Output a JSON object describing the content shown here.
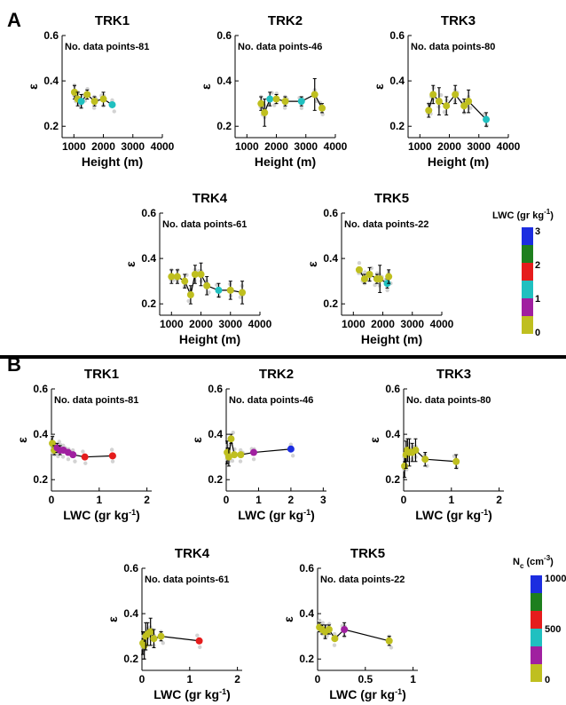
{
  "panel_labels": {
    "a": "A",
    "b": "B"
  },
  "colorbars": {
    "a": {
      "title": "LWC (gr kg",
      "title_sup": "-1",
      "title_close": ")",
      "ticks": [
        "3",
        "2",
        "1",
        "0"
      ]
    },
    "b": {
      "title": "N",
      "title_sub": "c",
      "title_mid": " (cm",
      "title_sup": "-3",
      "title_close": ")",
      "ticks": [
        "1000",
        "500",
        "0"
      ]
    },
    "colors": [
      "#bfbf1f",
      "#a020a0",
      "#20c0c0",
      "#e51c1c",
      "#1e7f1e",
      "#1c2de0"
    ]
  },
  "chart_data": [
    {
      "type": "line",
      "title": "TRK1",
      "annotation": "No. data points-81",
      "xlabel": "Height (m)",
      "ylabel": "ε",
      "xticks": [
        "1000",
        "2000",
        "3000",
        "4000"
      ],
      "yticks": [
        "0.6",
        "0.4",
        "0.2"
      ],
      "xlim": [
        600,
        4000
      ],
      "ylim": [
        0.15,
        0.6
      ],
      "x": [
        1020,
        1130,
        1250,
        1450,
        1700,
        2000,
        2300
      ],
      "y": [
        0.35,
        0.32,
        0.31,
        0.34,
        0.31,
        0.32,
        0.295
      ],
      "err": [
        0.03,
        0.03,
        0.03,
        0.02,
        0.02,
        0.03,
        0.0
      ],
      "color_level": [
        0.3,
        0.3,
        1.0,
        0.3,
        0.3,
        0.3,
        1.0
      ]
    },
    {
      "type": "line",
      "title": "TRK2",
      "annotation": "No. data points-46",
      "xlabel": "Height (m)",
      "ylabel": "ε",
      "xticks": [
        "1000",
        "2000",
        "3000",
        "4000"
      ],
      "yticks": [
        "0.6",
        "0.4",
        "0.2"
      ],
      "xlim": [
        600,
        4000
      ],
      "ylim": [
        0.15,
        0.6
      ],
      "x": [
        1480,
        1600,
        1780,
        2000,
        2300,
        2850,
        3300,
        3550
      ],
      "y": [
        0.3,
        0.26,
        0.32,
        0.32,
        0.31,
        0.31,
        0.34,
        0.28
      ],
      "err": [
        0.03,
        0.06,
        0.03,
        0.02,
        0.02,
        0.02,
        0.07,
        0.02
      ],
      "color_level": [
        0.3,
        0.3,
        1.3,
        0.3,
        0.3,
        1.3,
        0.3,
        0.3
      ]
    },
    {
      "type": "line",
      "title": "TRK3",
      "annotation": "No. data points-80",
      "xlabel": "Height (m)",
      "ylabel": "ε",
      "xticks": [
        "1000",
        "2000",
        "3000",
        "4000"
      ],
      "yticks": [
        "0.6",
        "0.4",
        "0.2"
      ],
      "xlim": [
        600,
        4000
      ],
      "ylim": [
        0.15,
        0.6
      ],
      "x": [
        1300,
        1450,
        1650,
        1900,
        2200,
        2500,
        2650,
        3250
      ],
      "y": [
        0.27,
        0.34,
        0.31,
        0.29,
        0.34,
        0.29,
        0.31,
        0.23
      ],
      "err": [
        0.03,
        0.04,
        0.06,
        0.04,
        0.04,
        0.03,
        0.05,
        0.03
      ],
      "color_level": [
        0.3,
        0.3,
        0.3,
        0.3,
        0.3,
        0.3,
        0.3,
        1.0
      ]
    },
    {
      "type": "line",
      "title": "TRK4",
      "annotation": "No. data points-61",
      "xlabel": "Height (m)",
      "ylabel": "ε",
      "xticks": [
        "1000",
        "2000",
        "3000",
        "4000"
      ],
      "yticks": [
        "0.6",
        "0.4",
        "0.2"
      ],
      "xlim": [
        600,
        4000
      ],
      "ylim": [
        0.15,
        0.6
      ],
      "x": [
        1000,
        1200,
        1450,
        1650,
        1800,
        2000,
        2200,
        2600,
        3000,
        3400
      ],
      "y": [
        0.32,
        0.32,
        0.3,
        0.24,
        0.33,
        0.33,
        0.28,
        0.26,
        0.26,
        0.25
      ],
      "err": [
        0.03,
        0.03,
        0.03,
        0.04,
        0.04,
        0.05,
        0.04,
        0.03,
        0.04,
        0.05
      ],
      "color_level": [
        0.3,
        0.3,
        0.3,
        0.3,
        0.3,
        0.3,
        0.3,
        1.0,
        0.3,
        0.3
      ]
    },
    {
      "type": "line",
      "title": "TRK5",
      "annotation": "No. data points-22",
      "xlabel": "Height (m)",
      "ylabel": "ε",
      "xticks": [
        "1000",
        "2000",
        "3000",
        "4000"
      ],
      "yticks": [
        "0.6",
        "0.4",
        "0.2"
      ],
      "xlim": [
        600,
        4000
      ],
      "ylim": [
        0.15,
        0.6
      ],
      "x": [
        1200,
        1380,
        1550,
        1800,
        1900,
        2150,
        2200
      ],
      "y": [
        0.35,
        0.31,
        0.33,
        0.31,
        0.31,
        0.29,
        0.32
      ],
      "err": [
        0.01,
        0.02,
        0.03,
        0.02,
        0.06,
        0.02,
        0.03
      ],
      "color_level": [
        0.3,
        0.3,
        0.3,
        0.3,
        0.3,
        1.0,
        0.3
      ]
    },
    {
      "type": "line",
      "title": "TRK1",
      "annotation": "No. data points-81",
      "xlabel": "LWC (gr kg",
      "xlabel_sup": "-1",
      "xlabel_close": ")",
      "ylabel": "ε",
      "xticks": [
        "0",
        "1",
        "2"
      ],
      "yticks": [
        "0.6",
        "0.4",
        "0.2"
      ],
      "xlim": [
        0,
        2.1
      ],
      "ylim": [
        0.15,
        0.6
      ],
      "x": [
        0.02,
        0.06,
        0.12,
        0.18,
        0.25,
        0.35,
        0.45,
        0.7,
        1.28
      ],
      "y": [
        0.36,
        0.33,
        0.34,
        0.33,
        0.33,
        0.32,
        0.31,
        0.3,
        0.305
      ],
      "err": [
        0.03,
        0.02,
        0.02,
        0.02,
        0.01,
        0.01,
        0.01,
        0.0,
        0.0
      ],
      "color_level": [
        0,
        60,
        250,
        250,
        250,
        250,
        250,
        600,
        600
      ]
    },
    {
      "type": "line",
      "title": "TRK2",
      "annotation": "No. data points-46",
      "xlabel": "LWC (gr kg",
      "xlabel_sup": "-1",
      "xlabel_close": ")",
      "ylabel": "ε",
      "xticks": [
        "0",
        "1",
        "2",
        "3"
      ],
      "yticks": [
        "0.6",
        "0.4",
        "0.2"
      ],
      "xlim": [
        0,
        3.1
      ],
      "ylim": [
        0.15,
        0.6
      ],
      "x": [
        0.03,
        0.08,
        0.15,
        0.25,
        0.45,
        0.85,
        2.0
      ],
      "y": [
        0.32,
        0.3,
        0.38,
        0.31,
        0.31,
        0.32,
        0.335
      ],
      "err": [
        0.05,
        0.04,
        0.02,
        0.01,
        0.0,
        0.0,
        0.0
      ],
      "color_level": [
        0,
        0,
        100,
        100,
        100,
        300,
        1000
      ]
    },
    {
      "type": "line",
      "title": "TRK3",
      "annotation": "No. data points-80",
      "xlabel": "LWC (gr kg",
      "xlabel_sup": "-1",
      "xlabel_close": ")",
      "ylabel": "ε",
      "xticks": [
        "0",
        "1",
        "2"
      ],
      "yticks": [
        "0.6",
        "0.4",
        "0.2"
      ],
      "xlim": [
        0,
        2.1
      ],
      "ylim": [
        0.15,
        0.6
      ],
      "x": [
        0.02,
        0.05,
        0.08,
        0.12,
        0.18,
        0.25,
        0.45,
        1.1
      ],
      "y": [
        0.26,
        0.31,
        0.33,
        0.32,
        0.32,
        0.33,
        0.29,
        0.28
      ],
      "err": [
        0.05,
        0.06,
        0.05,
        0.06,
        0.04,
        0.05,
        0.03,
        0.03
      ],
      "color_level": [
        0,
        0,
        0,
        0,
        0,
        0,
        100,
        100
      ]
    },
    {
      "type": "line",
      "title": "TRK4",
      "annotation": "No. data points-61",
      "xlabel": "LWC (gr kg",
      "xlabel_sup": "-1",
      "xlabel_close": ")",
      "ylabel": "ε",
      "xticks": [
        "0",
        "1",
        "2"
      ],
      "yticks": [
        "0.6",
        "0.4",
        "0.2"
      ],
      "xlim": [
        0,
        2.1
      ],
      "ylim": [
        0.15,
        0.6
      ],
      "x": [
        0.02,
        0.05,
        0.08,
        0.12,
        0.18,
        0.25,
        0.4,
        1.2
      ],
      "y": [
        0.27,
        0.26,
        0.3,
        0.31,
        0.32,
        0.29,
        0.3,
        0.28
      ],
      "err": [
        0.05,
        0.06,
        0.06,
        0.05,
        0.06,
        0.04,
        0.02,
        0.0
      ],
      "color_level": [
        0,
        0,
        0,
        0,
        0,
        0,
        100,
        600
      ]
    },
    {
      "type": "line",
      "title": "TRK5",
      "annotation": "No. data points-22",
      "xlabel": "LWC (gr kg",
      "xlabel_sup": "-1",
      "xlabel_close": ")",
      "ylabel": "ε",
      "xticks": [
        "0",
        "0.5",
        "1"
      ],
      "yticks": [
        "0.6",
        "0.4",
        "0.2"
      ],
      "xlim": [
        0,
        1.05
      ],
      "ylim": [
        0.15,
        0.6
      ],
      "x": [
        0.02,
        0.05,
        0.08,
        0.12,
        0.18,
        0.28,
        0.75
      ],
      "y": [
        0.34,
        0.33,
        0.32,
        0.33,
        0.29,
        0.33,
        0.28
      ],
      "err": [
        0.02,
        0.02,
        0.03,
        0.02,
        0.01,
        0.03,
        0.02
      ],
      "color_level": [
        0,
        0,
        0,
        0,
        100,
        300,
        100
      ]
    }
  ]
}
